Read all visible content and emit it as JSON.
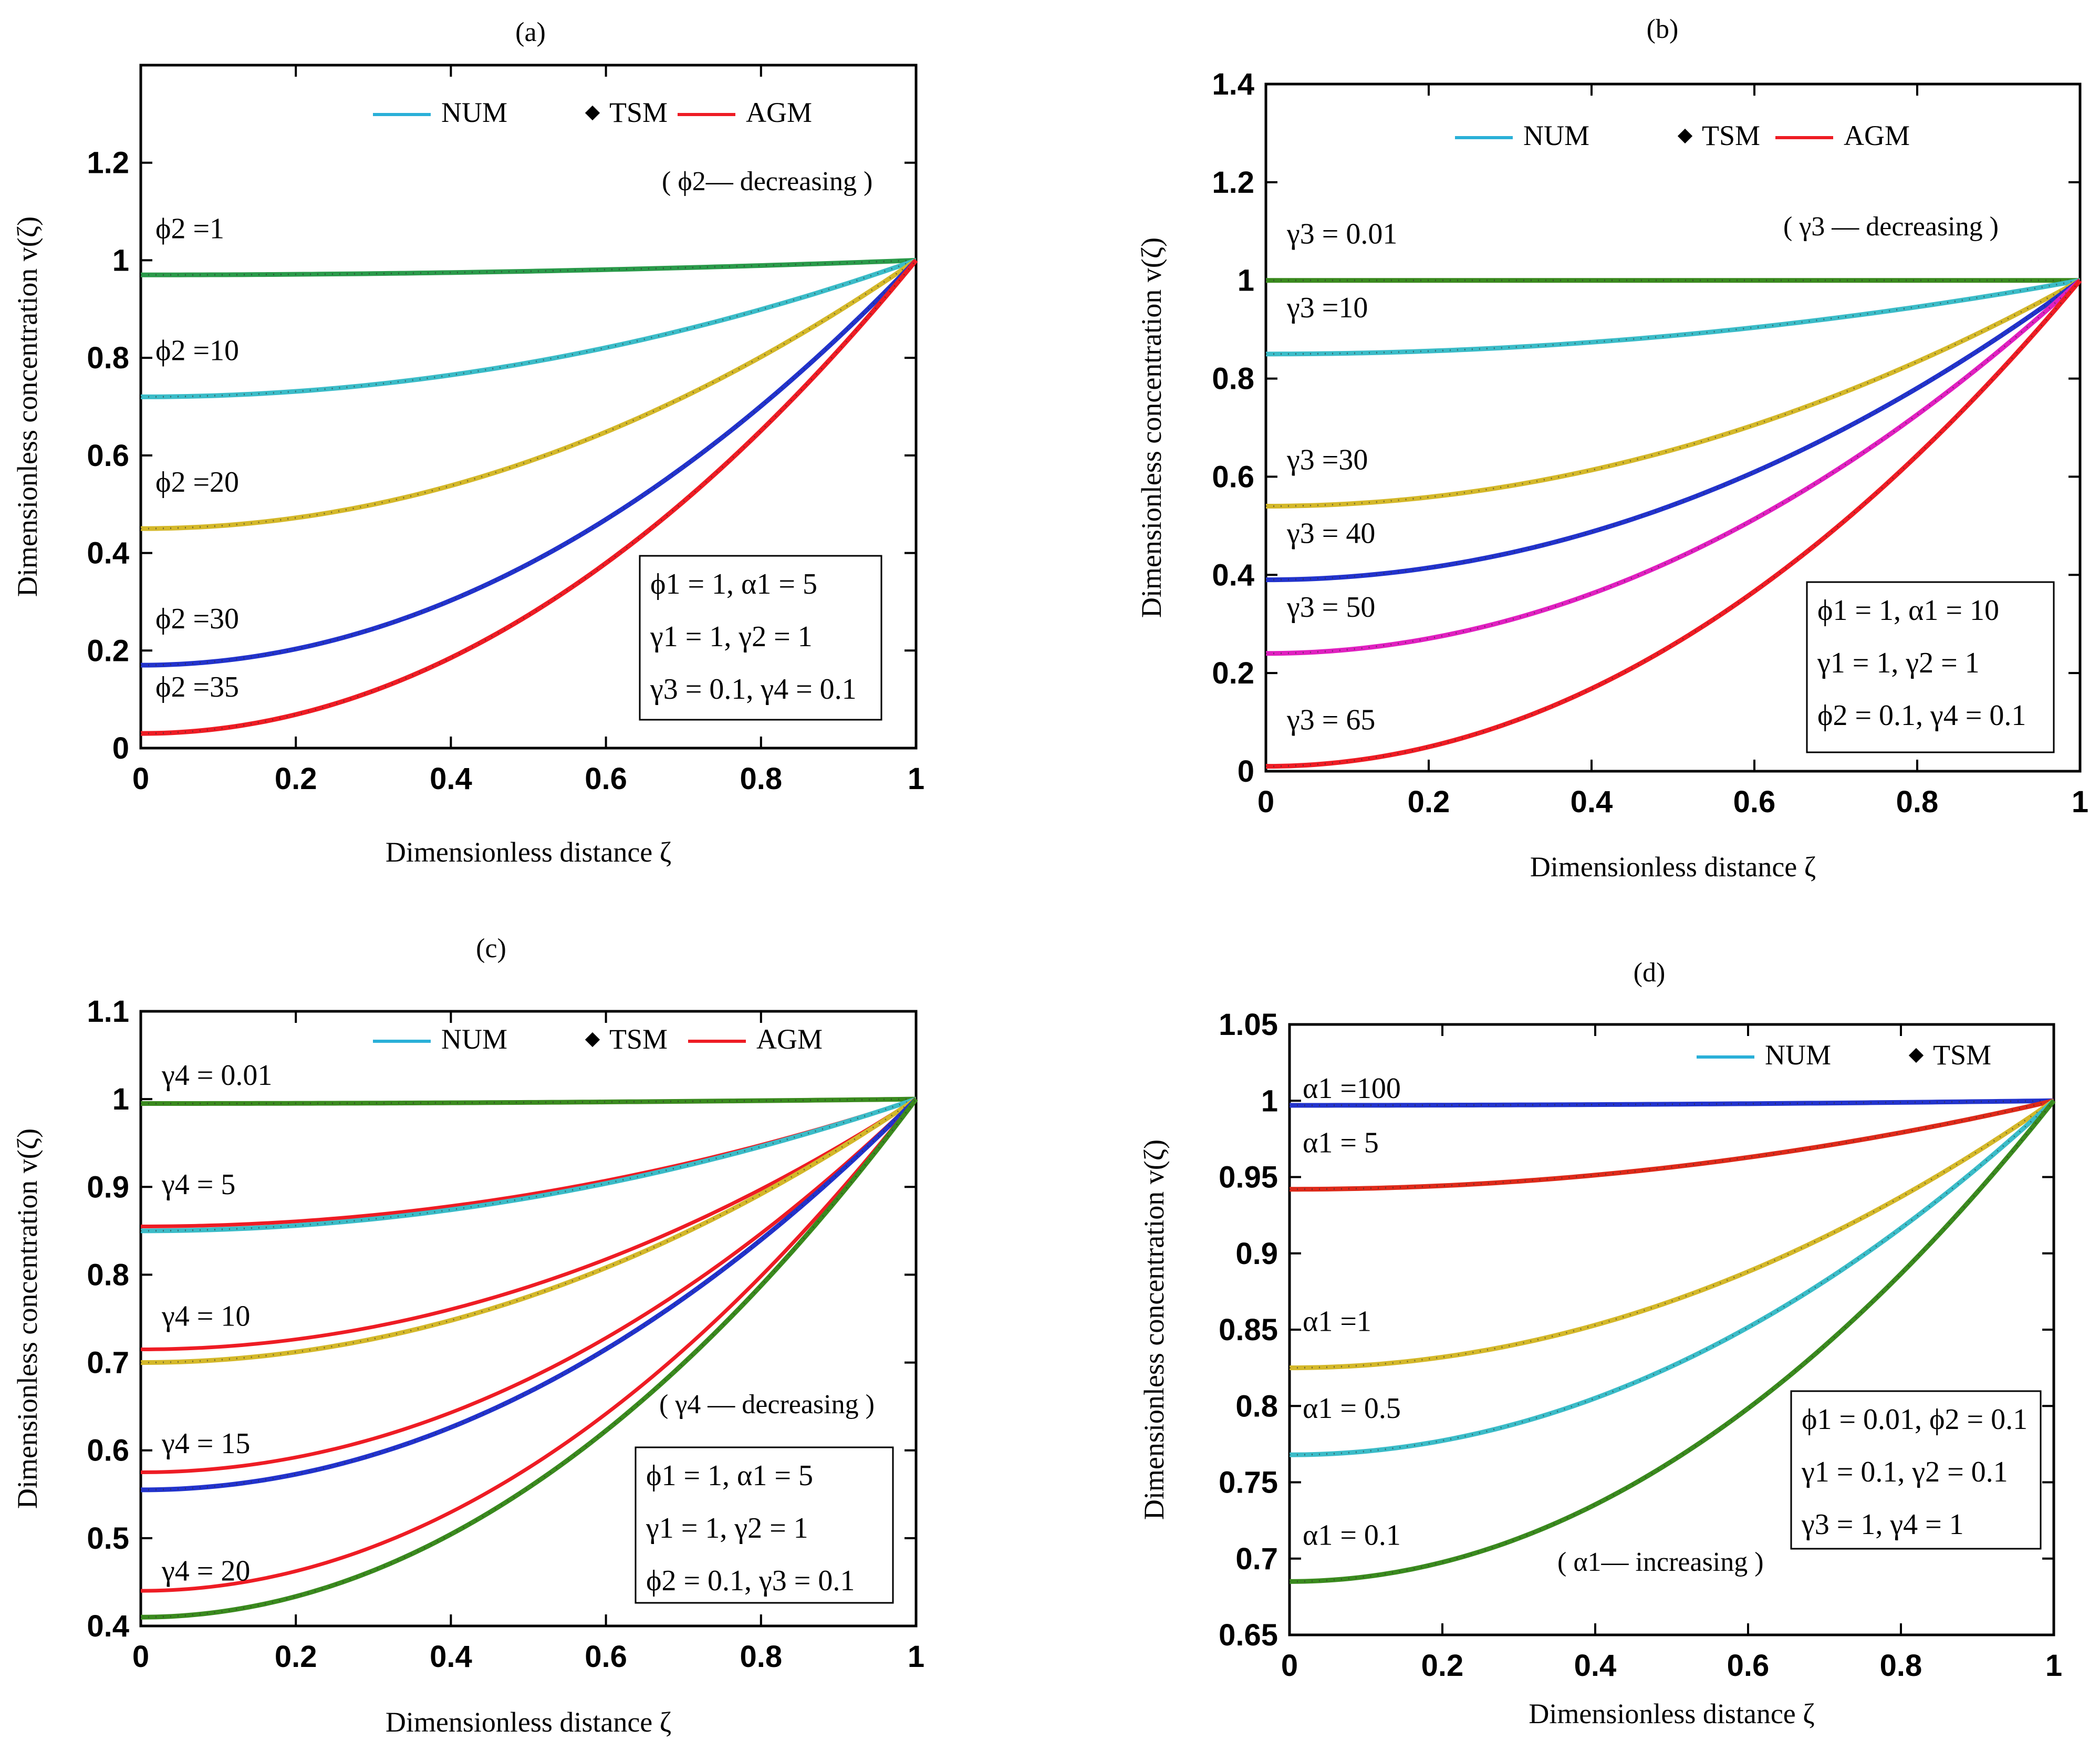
{
  "figure": {
    "panels": 4
  },
  "chart_data": [
    {
      "id": "a",
      "type": "line",
      "title": "(a)",
      "xlabel": "Dimensionless distance ζ",
      "ylabel": "Dimensionless concentration v(ζ)",
      "xlim": [
        0,
        1
      ],
      "ylim": [
        0,
        1.4
      ],
      "xticks": [
        "0",
        "0.2",
        "0.4",
        "0.6",
        "0.8",
        "1"
      ],
      "yticks": [
        "0",
        "0.2",
        "0.4",
        "0.6",
        "0.8",
        "1",
        "1.2"
      ],
      "legend": [
        {
          "label": "NUM",
          "kind": "line",
          "color": "#2ab0d8"
        },
        {
          "label": "TSM",
          "kind": "marker",
          "color": "#000000"
        },
        {
          "label": "AGM",
          "kind": "line",
          "color": "#ee1c24"
        }
      ],
      "hint": "( ϕ2— decreasing )",
      "params": [
        "ϕ1 = 1, α1 = 5",
        "γ1 = 1, γ2 = 1",
        "γ3 = 0.1, γ4 = 0.1"
      ],
      "series": [
        {
          "name": "ϕ2 = 1",
          "start": 0.97,
          "label": "ϕ2 =1",
          "color": "#3a8a1e",
          "num": "#2a9a4a"
        },
        {
          "name": "ϕ2 = 10",
          "start": 0.72,
          "label": "ϕ2 =10",
          "color": "#e74b3c",
          "num": "#3bbcc8"
        },
        {
          "name": "ϕ2 = 20",
          "start": 0.45,
          "label": "ϕ2 =20",
          "color": "#e74b3c",
          "num": "#d4b82a"
        },
        {
          "name": "ϕ2 = 30",
          "start": 0.17,
          "label": "ϕ2 =30",
          "color": "#ee1c24",
          "num": "#2233cc"
        },
        {
          "name": "ϕ2 = 35",
          "start": 0.03,
          "label": "ϕ2 =35",
          "color": "#ee1c24",
          "num": "#ee1c24"
        }
      ]
    },
    {
      "id": "b",
      "type": "line",
      "title": "(b)",
      "xlabel": "Dimensionless distance ζ",
      "ylabel": "Dimensionless concentration v(ζ)",
      "xlim": [
        0,
        1
      ],
      "ylim": [
        0,
        1.4
      ],
      "xticks": [
        "0",
        "0.2",
        "0.4",
        "0.6",
        "0.8",
        "1"
      ],
      "yticks": [
        "0",
        "0.2",
        "0.4",
        "0.6",
        "0.8",
        "1",
        "1.2",
        "1.4"
      ],
      "legend": [
        {
          "label": "NUM",
          "kind": "line",
          "color": "#2ab0d8"
        },
        {
          "label": "TSM",
          "kind": "marker",
          "color": "#000000"
        },
        {
          "label": "AGM",
          "kind": "line",
          "color": "#ee1c24"
        }
      ],
      "hint": "( γ3 — decreasing )",
      "params": [
        "ϕ1 = 1, α1 = 10",
        "γ1 = 1, γ2 = 1",
        "ϕ2 = 0.1, γ4 = 0.1"
      ],
      "series": [
        {
          "name": "γ3 = 0.01",
          "start": 1.0,
          "label": "γ3 = 0.01",
          "color": "#3a8a1e",
          "num": "#3a8a1e"
        },
        {
          "name": "γ3 = 10",
          "start": 0.85,
          "label": "γ3 =10",
          "color": "#3bbcc8",
          "num": "#3bbcc8"
        },
        {
          "name": "γ3 = 30",
          "start": 0.54,
          "label": "γ3 =30",
          "color": "#d4b82a",
          "num": "#d4b82a"
        },
        {
          "name": "γ3 = 40",
          "start": 0.39,
          "label": "γ3 = 40",
          "color": "#2233cc",
          "num": "#2233cc"
        },
        {
          "name": "γ3 = 50",
          "start": 0.24,
          "label": "γ3 = 50",
          "color": "#e020c0",
          "num": "#e020c0"
        },
        {
          "name": "γ3 = 65",
          "start": 0.01,
          "label": "γ3 = 65",
          "color": "#ee1c24",
          "num": "#ee1c24"
        }
      ]
    },
    {
      "id": "c",
      "type": "line",
      "title": "(c)",
      "xlabel": "Dimensionless distance ζ",
      "ylabel": "Dimensionless concentration v(ζ)",
      "xlim": [
        0,
        1
      ],
      "ylim": [
        0.4,
        1.1
      ],
      "xticks": [
        "0",
        "0.2",
        "0.4",
        "0.6",
        "0.8",
        "1"
      ],
      "yticks": [
        "0.4",
        "0.5",
        "0.6",
        "0.7",
        "0.8",
        "0.9",
        "1",
        "1.1"
      ],
      "legend": [
        {
          "label": "NUM",
          "kind": "line",
          "color": "#2ab0d8"
        },
        {
          "label": "TSM",
          "kind": "marker",
          "color": "#000000"
        },
        {
          "label": "AGM",
          "kind": "line",
          "color": "#ee1c24"
        }
      ],
      "hint": "( γ4 — decreasing )",
      "params": [
        "ϕ1 = 1, α1 = 5",
        "γ1 = 1, γ2 = 1",
        "ϕ2 = 0.1, γ3 = 0.1"
      ],
      "series": [
        {
          "name": "γ4 = 0.01",
          "start": 0.995,
          "agm": 0.995,
          "label": "γ4 = 0.01",
          "num": "#3a8a1e"
        },
        {
          "name": "γ4 = 5",
          "start": 0.85,
          "agm": 0.855,
          "label": "γ4 = 5",
          "num": "#3bbcc8"
        },
        {
          "name": "γ4 = 10",
          "start": 0.7,
          "agm": 0.715,
          "label": "γ4 = 10",
          "num": "#d4b82a"
        },
        {
          "name": "γ4 = 15",
          "start": 0.555,
          "agm": 0.575,
          "label": "γ4 = 15",
          "num": "#2233cc"
        },
        {
          "name": "γ4 = 20",
          "start": 0.41,
          "agm": 0.44,
          "label": "γ4 = 20",
          "num": "#3a8a1e"
        }
      ]
    },
    {
      "id": "d",
      "type": "line",
      "title": "(d)",
      "xlabel": "Dimensionless distance ζ",
      "ylabel": "Dimensionless concentration v(ζ)",
      "xlim": [
        0,
        1
      ],
      "ylim": [
        0.65,
        1.05
      ],
      "xticks": [
        "0",
        "0.2",
        "0.4",
        "0.6",
        "0.8",
        "1"
      ],
      "yticks": [
        "0.65",
        "0.7",
        "0.75",
        "0.8",
        "0.85",
        "0.9",
        "0.95",
        "1",
        "1.05"
      ],
      "legend": [
        {
          "label": "NUM",
          "kind": "line",
          "color": "#2ab0d8"
        },
        {
          "label": "TSM",
          "kind": "marker",
          "color": "#000000"
        }
      ],
      "hint": "( α1— increasing )",
      "params": [
        "ϕ1 = 0.01, ϕ2 = 0.1",
        "γ1 = 0.1, γ2 = 0.1",
        "γ3 = 1, γ4 = 1"
      ],
      "series": [
        {
          "name": "α1 = 100",
          "start": 0.997,
          "label": "α1 =100",
          "num": "#2233cc"
        },
        {
          "name": "α1 = 5",
          "start": 0.942,
          "label": "α1 = 5",
          "num": "#dd2a1a"
        },
        {
          "name": "α1 = 1",
          "start": 0.825,
          "label": "α1 =1",
          "num": "#d4b82a"
        },
        {
          "name": "α1 = 0.5",
          "start": 0.768,
          "label": "α1 = 0.5",
          "num": "#3bbcc8"
        },
        {
          "name": "α1 = 0.1",
          "start": 0.685,
          "label": "α1 = 0.1",
          "num": "#3a8a1e"
        }
      ]
    }
  ]
}
